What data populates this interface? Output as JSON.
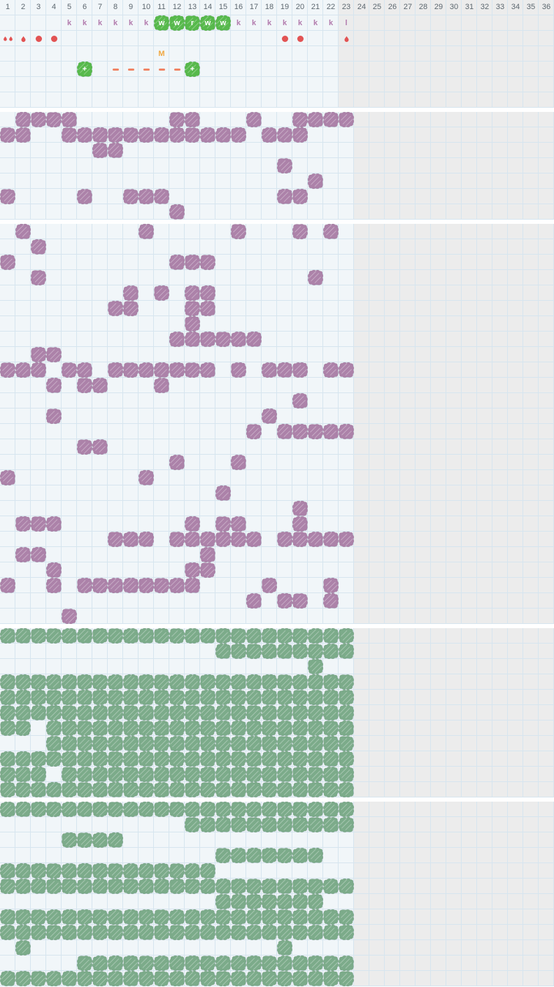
{
  "calendar": {
    "total_days": 36,
    "highlight_from_day": 23,
    "day_numbers": [
      1,
      2,
      3,
      4,
      5,
      6,
      7,
      8,
      9,
      10,
      11,
      12,
      13,
      14,
      15,
      16,
      17,
      18,
      19,
      20,
      21,
      22,
      23,
      24,
      25,
      26,
      27,
      28,
      29,
      30,
      31,
      32,
      33,
      34,
      35,
      36
    ],
    "colors": {
      "cell_bg": "#f1f6f9",
      "future_bg": "#ececec",
      "grid_line": "#d6e5ef",
      "purple_blob": "#ac82a9",
      "green_blob": "#7cab8a",
      "bright_green_blob": "#57b94c",
      "red_flow": "#e25353",
      "letter_purple": "#b37cae",
      "note_orange": "#f0a843",
      "dash_salmon": "#f08465",
      "day_number_gray": "#5c676f"
    },
    "top": {
      "letter_markers": [
        {
          "day": 5,
          "label": "k",
          "blob": false
        },
        {
          "day": 6,
          "label": "k",
          "blob": false
        },
        {
          "day": 7,
          "label": "k",
          "blob": false
        },
        {
          "day": 8,
          "label": "k",
          "blob": false
        },
        {
          "day": 9,
          "label": "k",
          "blob": false
        },
        {
          "day": 10,
          "label": "k",
          "blob": false
        },
        {
          "day": 11,
          "label": "w",
          "blob": true
        },
        {
          "day": 12,
          "label": "w",
          "blob": true
        },
        {
          "day": 13,
          "label": "r",
          "blob": true
        },
        {
          "day": 14,
          "label": "w",
          "blob": true
        },
        {
          "day": 15,
          "label": "w",
          "blob": true
        },
        {
          "day": 16,
          "label": "k",
          "blob": false
        },
        {
          "day": 17,
          "label": "k",
          "blob": false
        },
        {
          "day": 18,
          "label": "k",
          "blob": false
        },
        {
          "day": 19,
          "label": "k",
          "blob": false
        },
        {
          "day": 20,
          "label": "k",
          "blob": false
        },
        {
          "day": 21,
          "label": "k",
          "blob": false
        },
        {
          "day": 22,
          "label": "k",
          "blob": false
        },
        {
          "day": 23,
          "label": "l",
          "blob": false
        }
      ],
      "flow_markers": [
        {
          "day": 1,
          "shape": "drop2"
        },
        {
          "day": 2,
          "shape": "drop"
        },
        {
          "day": 3,
          "shape": "dot"
        },
        {
          "day": 4,
          "shape": "dot"
        },
        {
          "day": 19,
          "shape": "dot"
        },
        {
          "day": 20,
          "shape": "dot"
        },
        {
          "day": 23,
          "shape": "drop"
        }
      ],
      "note_markers": [
        {
          "day": 11,
          "label": "M"
        }
      ],
      "action_markers": [
        {
          "day": 6,
          "shape": "plus"
        },
        {
          "day": 8,
          "shape": "dash"
        },
        {
          "day": 9,
          "shape": "dash"
        },
        {
          "day": 10,
          "shape": "dash"
        },
        {
          "day": 11,
          "shape": "dash"
        },
        {
          "day": 12,
          "shape": "dash"
        },
        {
          "day": 13,
          "shape": "plus"
        }
      ],
      "plus_label": "+",
      "empty_trailing_rows": 2
    },
    "sections": [
      {
        "id": "purple-section-1",
        "color": "purple",
        "rows": [
          [
            "2-5",
            12,
            13,
            17,
            "20-23"
          ],
          [
            1,
            2,
            "5-16",
            "18-20"
          ],
          [
            7,
            8
          ],
          [
            19
          ],
          [
            21
          ],
          [
            1,
            6,
            "9-11",
            19,
            20
          ],
          [
            12
          ]
        ]
      },
      {
        "id": "purple-section-2",
        "color": "purple",
        "rows": [
          [
            2,
            10,
            16,
            20,
            22
          ],
          [
            3
          ],
          [
            1,
            "12-14"
          ],
          [
            3,
            21
          ],
          [
            9,
            11,
            13,
            14
          ],
          [
            8,
            9,
            13,
            14
          ],
          [
            13
          ],
          [
            "12-17"
          ],
          [
            3,
            4
          ],
          [
            "1-3",
            5,
            6,
            "8-14",
            16,
            "18-20",
            22,
            23
          ],
          [
            4,
            6,
            7,
            11
          ],
          [
            20
          ],
          [
            4,
            18
          ],
          [
            17,
            "19-23"
          ],
          [
            6,
            7
          ],
          [
            12,
            16
          ],
          [
            1,
            10
          ],
          [
            15
          ],
          [
            20
          ],
          [
            "2-4",
            13,
            15,
            16,
            20
          ],
          [
            "8-10",
            "12-17",
            "19-23"
          ],
          [
            2,
            3,
            14
          ],
          [
            4,
            13,
            14
          ],
          [
            1,
            4,
            "6-13",
            18,
            22
          ],
          [
            17,
            19,
            20,
            22
          ],
          [
            5
          ]
        ]
      },
      {
        "id": "green-section-1",
        "color": "green",
        "rows": [
          [
            "1-23"
          ],
          [
            "15-23"
          ],
          [
            21
          ],
          [
            "1-23"
          ],
          [
            "1-23"
          ],
          [
            "1-23"
          ],
          [
            1,
            2,
            "4-23"
          ],
          [
            "4-23"
          ],
          [
            "1-23"
          ],
          [
            "1-3",
            "5-23"
          ],
          [
            "1-23"
          ]
        ]
      },
      {
        "id": "green-section-2",
        "color": "green",
        "rows": [
          [
            "1-23"
          ],
          [
            "13-23"
          ],
          [
            "5-8"
          ],
          [
            "15-21"
          ],
          [
            "1-14"
          ],
          [
            "1-23"
          ],
          [
            "15-21"
          ],
          [
            "1-23"
          ],
          [
            "1-23"
          ],
          [
            2,
            19
          ],
          [
            "6-23"
          ],
          [
            "1-23"
          ]
        ]
      }
    ]
  }
}
